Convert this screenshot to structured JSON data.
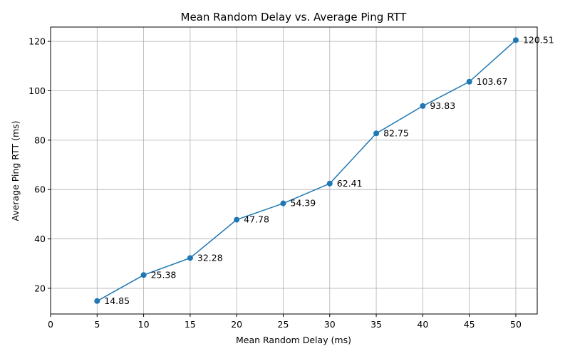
{
  "chart_data": {
    "type": "line",
    "title": "Mean Random Delay vs. Average Ping RTT",
    "xlabel": "Mean Random Delay (ms)",
    "ylabel": "Average Ping RTT (ms)",
    "x": [
      5,
      10,
      15,
      20,
      25,
      30,
      35,
      40,
      45,
      50
    ],
    "series": [
      {
        "name": "Average Ping RTT",
        "values": [
          14.85,
          25.38,
          32.28,
          47.78,
          54.39,
          62.41,
          82.75,
          93.83,
          103.67,
          120.51
        ],
        "labels": [
          "14.85",
          "25.38",
          "32.28",
          "47.78",
          "54.39",
          "62.41",
          "82.75",
          "93.83",
          "103.67",
          "120.51"
        ],
        "color": "#1f77b4"
      }
    ],
    "xlim": [
      0,
      52.3
    ],
    "ylim": [
      9.6,
      125.8
    ],
    "xticks": [
      0,
      5,
      10,
      15,
      20,
      25,
      30,
      35,
      40,
      45,
      50
    ],
    "yticks": [
      20,
      40,
      60,
      80,
      100,
      120
    ],
    "grid": true
  }
}
